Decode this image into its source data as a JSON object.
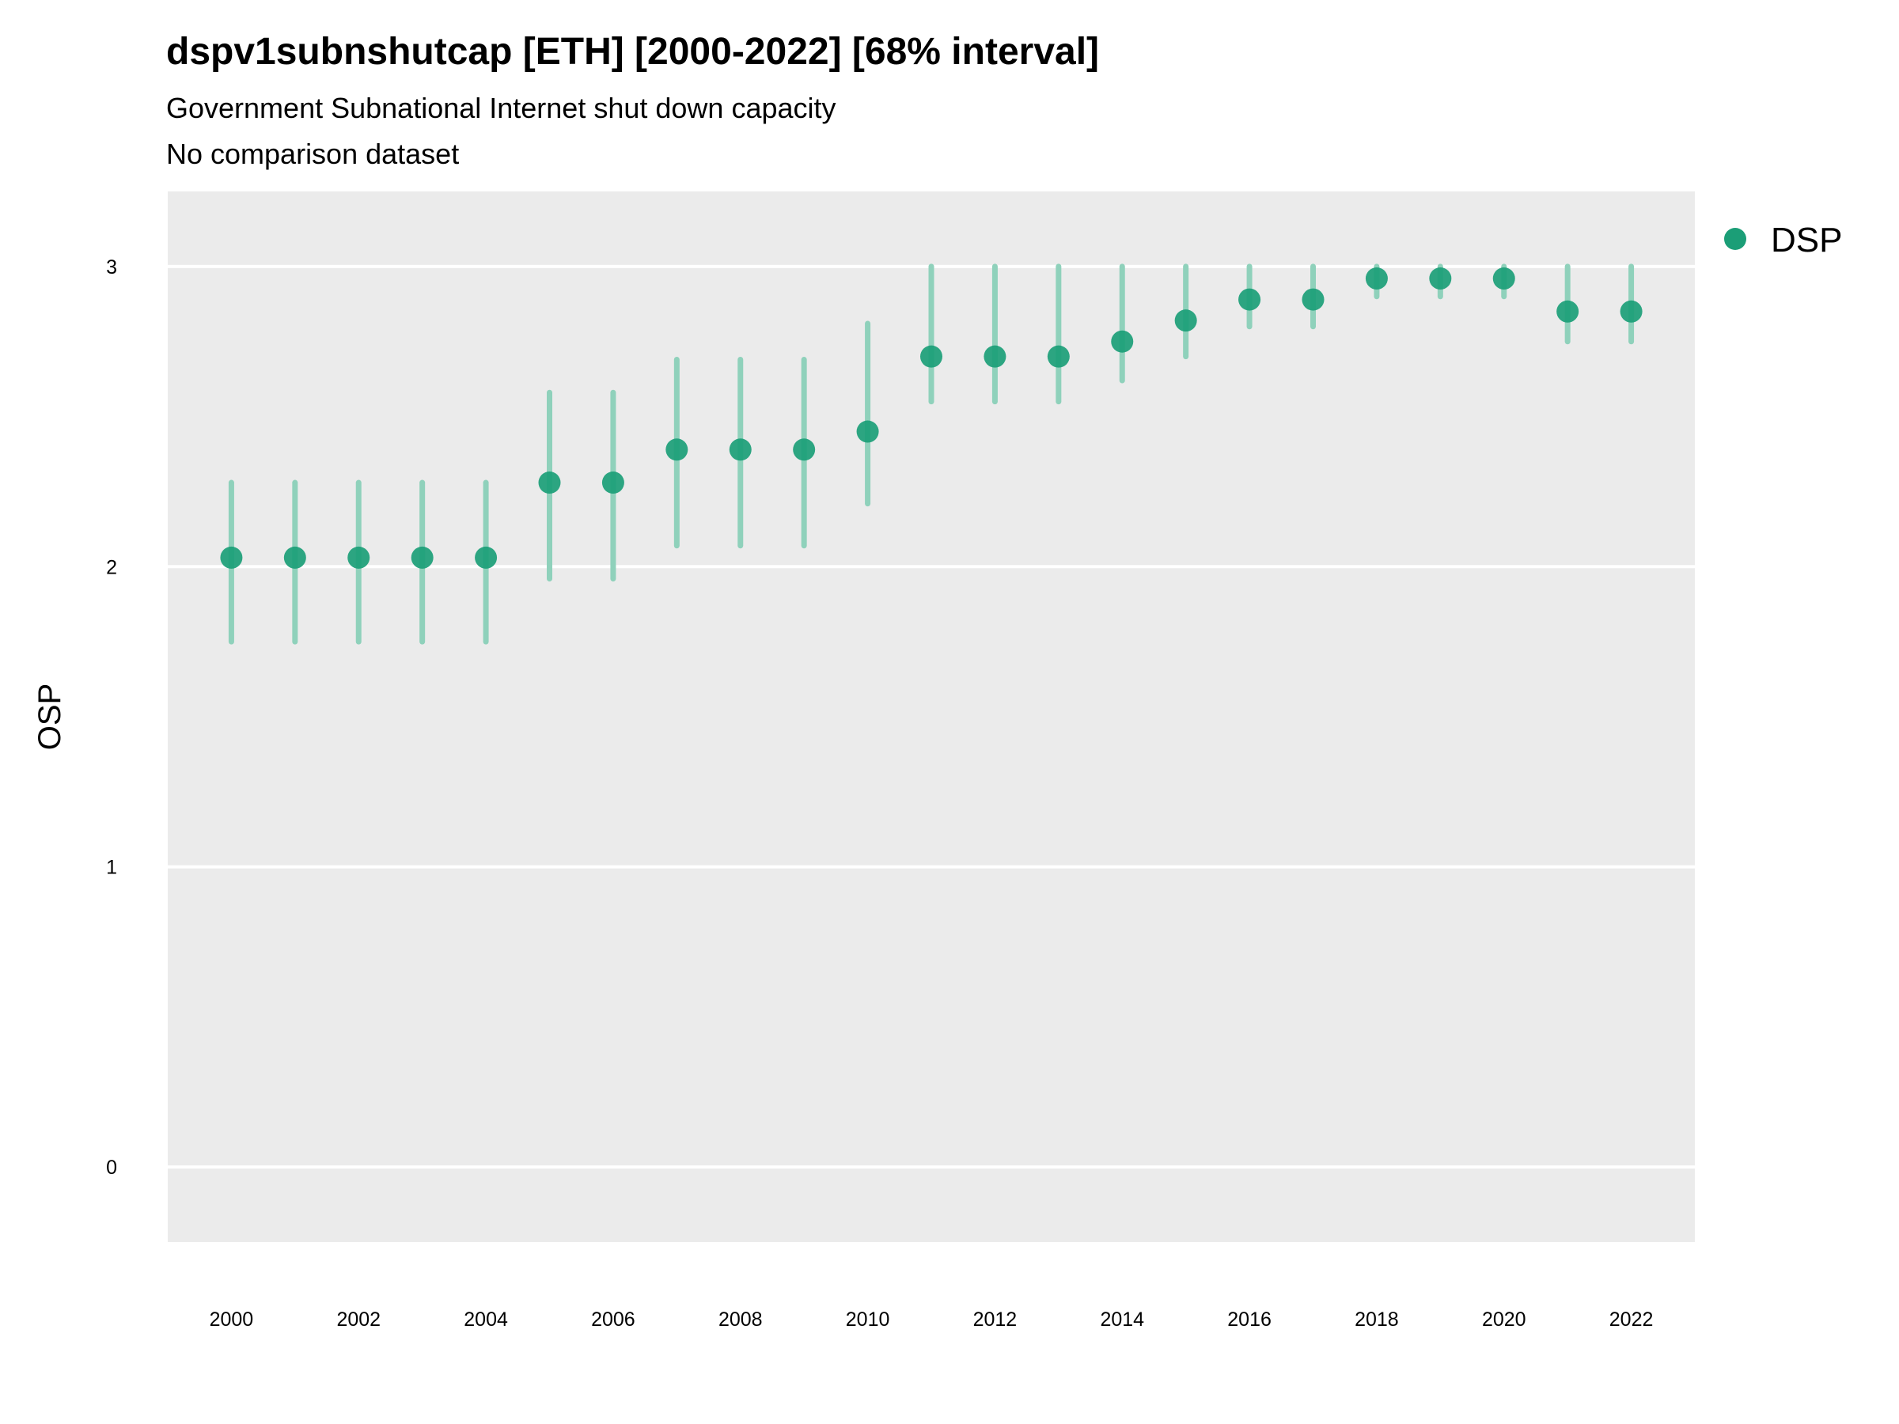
{
  "chart_data": {
    "type": "scatter",
    "title": "dspv1subnshutcap [ETH] [2000-2022] [68% interval]",
    "subtitle": "Government Subnational Internet shut down capacity",
    "caption": "No comparison dataset",
    "xlabel": "",
    "ylabel": "OSP",
    "ylim": [
      -0.25,
      3.25
    ],
    "xlim": [
      1999,
      2023
    ],
    "y_ticks": [
      "0",
      "1",
      "2",
      "3"
    ],
    "x_ticks": [
      "2000",
      "2002",
      "2004",
      "2006",
      "2008",
      "2010",
      "2012",
      "2014",
      "2016",
      "2018",
      "2020",
      "2022"
    ],
    "grid": true,
    "legend_position": "right",
    "colors": {
      "point": "#1b9e77",
      "interval": "#8fd1bb",
      "panel": "#ebebeb",
      "grid": "#ffffff"
    },
    "series": [
      {
        "name": "DSP",
        "x": [
          2000,
          2001,
          2002,
          2003,
          2004,
          2005,
          2006,
          2007,
          2008,
          2009,
          2010,
          2011,
          2012,
          2013,
          2014,
          2015,
          2016,
          2017,
          2018,
          2019,
          2020,
          2021,
          2022
        ],
        "y": [
          2.03,
          2.03,
          2.03,
          2.03,
          2.03,
          2.28,
          2.28,
          2.39,
          2.39,
          2.39,
          2.45,
          2.7,
          2.7,
          2.7,
          2.75,
          2.82,
          2.89,
          2.89,
          2.96,
          2.96,
          2.96,
          2.85,
          2.85
        ],
        "lower": [
          1.75,
          1.75,
          1.75,
          1.75,
          1.75,
          1.96,
          1.96,
          2.07,
          2.07,
          2.07,
          2.21,
          2.55,
          2.55,
          2.55,
          2.62,
          2.7,
          2.8,
          2.8,
          2.9,
          2.9,
          2.9,
          2.75,
          2.75
        ],
        "upper": [
          2.28,
          2.28,
          2.28,
          2.28,
          2.28,
          2.58,
          2.58,
          2.69,
          2.69,
          2.69,
          2.81,
          3.0,
          3.0,
          3.0,
          3.0,
          3.0,
          3.0,
          3.0,
          3.0,
          3.0,
          3.0,
          3.0,
          3.0
        ]
      }
    ]
  }
}
